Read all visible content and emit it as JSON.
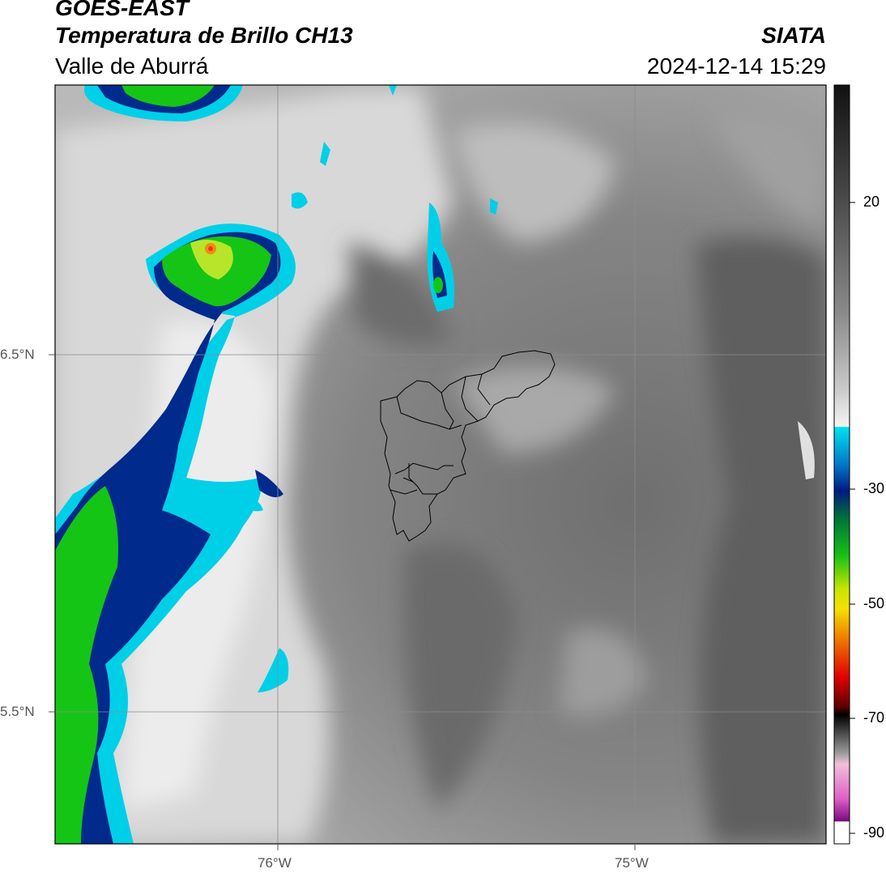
{
  "header": {
    "satellite": "GOES-EAST",
    "product": "Temperatura de Brillo CH13",
    "region": "Valle de Aburrá",
    "organization": "SIATA",
    "timestamp": "2024-12-14 15:29"
  },
  "axes": {
    "lat_labels": [
      "6.5°N",
      "5.5°N"
    ],
    "lon_labels": [
      "76°W",
      "75°W"
    ]
  },
  "colorbar": {
    "tick_labels": [
      "20",
      "-30",
      "-50",
      "-70",
      "-90"
    ],
    "colors": {
      "cold_cloud_cyan": "#00cfe8",
      "deep_blue": "#002a8c",
      "green": "#15c515",
      "yellow": "#f2ee00",
      "red": "#e60000",
      "magenta": "#e25ac8",
      "warm_gray": "#7a7a7a"
    }
  }
}
